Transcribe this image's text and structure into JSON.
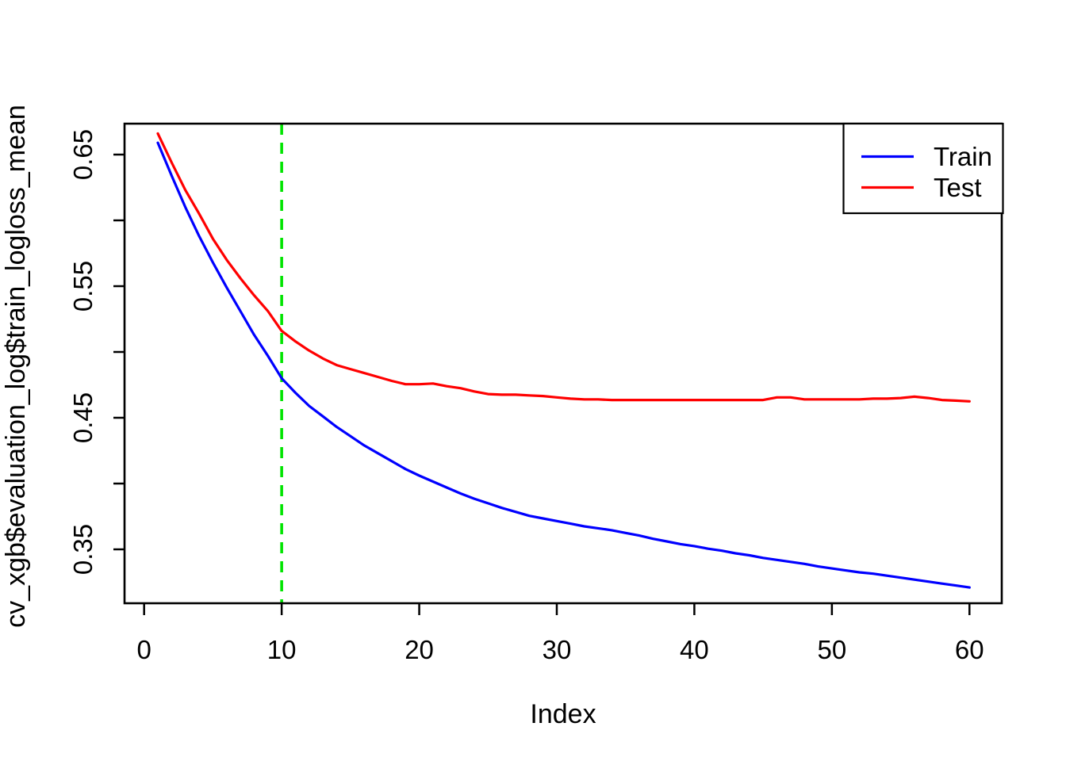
{
  "figure": {
    "background": "#ffffff",
    "border_color": "#000000"
  },
  "chart_data": {
    "type": "line",
    "title": "",
    "xlabel": "Index",
    "ylabel": "cv_xgb$evaluation_log$train_logloss_mean",
    "grid": false,
    "xlim": [
      0,
      62
    ],
    "ylim": [
      0.309,
      0.673
    ],
    "x_ticks": [
      0,
      10,
      20,
      30,
      40,
      50,
      60
    ],
    "x_tick_labels": [
      "0",
      "10",
      "20",
      "30",
      "40",
      "50",
      "60"
    ],
    "y_ticks_labeled": [
      0.35,
      0.45,
      0.55,
      0.65
    ],
    "y_tick_labels": [
      "0.35",
      "0.45",
      "0.55",
      "0.65"
    ],
    "y_ticks_minor": [
      0.4,
      0.5,
      0.6
    ],
    "x": [
      1,
      2,
      3,
      4,
      5,
      6,
      7,
      8,
      9,
      10,
      11,
      12,
      13,
      14,
      15,
      16,
      17,
      18,
      19,
      20,
      21,
      22,
      23,
      24,
      25,
      26,
      27,
      28,
      29,
      30,
      31,
      32,
      33,
      34,
      35,
      36,
      37,
      38,
      39,
      40,
      41,
      42,
      43,
      44,
      45,
      46,
      47,
      48,
      49,
      50,
      51,
      52,
      53,
      54,
      55,
      56,
      57,
      58,
      59,
      60
    ],
    "series": [
      {
        "name": "Train",
        "color": "#0000FF",
        "values": [
          0.659,
          0.634,
          0.61,
          0.588,
          0.568,
          0.549,
          0.531,
          0.513,
          0.497,
          0.48,
          0.469,
          0.459,
          0.451,
          0.443,
          0.436,
          0.429,
          0.423,
          0.417,
          0.411,
          0.406,
          0.4015,
          0.397,
          0.3925,
          0.3885,
          0.385,
          0.3815,
          0.3785,
          0.3755,
          0.3735,
          0.3715,
          0.3695,
          0.3675,
          0.366,
          0.3645,
          0.3625,
          0.3605,
          0.358,
          0.356,
          0.354,
          0.3525,
          0.3505,
          0.349,
          0.347,
          0.3455,
          0.3435,
          0.342,
          0.3405,
          0.339,
          0.337,
          0.3355,
          0.334,
          0.3325,
          0.3315,
          0.33,
          0.3285,
          0.327,
          0.3255,
          0.324,
          0.3225,
          0.321
        ]
      },
      {
        "name": "Test",
        "color": "#FF0000",
        "values": [
          0.666,
          0.644,
          0.623,
          0.605,
          0.586,
          0.57,
          0.556,
          0.543,
          0.531,
          0.516,
          0.508,
          0.501,
          0.495,
          0.49,
          0.487,
          0.484,
          0.481,
          0.478,
          0.4755,
          0.4755,
          0.476,
          0.474,
          0.4725,
          0.47,
          0.468,
          0.4675,
          0.4675,
          0.467,
          0.4665,
          0.4655,
          0.4645,
          0.464,
          0.464,
          0.4635,
          0.4635,
          0.4635,
          0.4635,
          0.4635,
          0.4635,
          0.4635,
          0.4635,
          0.4635,
          0.4635,
          0.4635,
          0.4635,
          0.4655,
          0.4655,
          0.464,
          0.464,
          0.464,
          0.464,
          0.464,
          0.4645,
          0.4645,
          0.465,
          0.466,
          0.465,
          0.4635,
          0.463,
          0.4625
        ]
      }
    ],
    "vline": {
      "x": 10,
      "color": "#00E400",
      "style": "dashed"
    },
    "legend": {
      "position": "topright"
    }
  }
}
